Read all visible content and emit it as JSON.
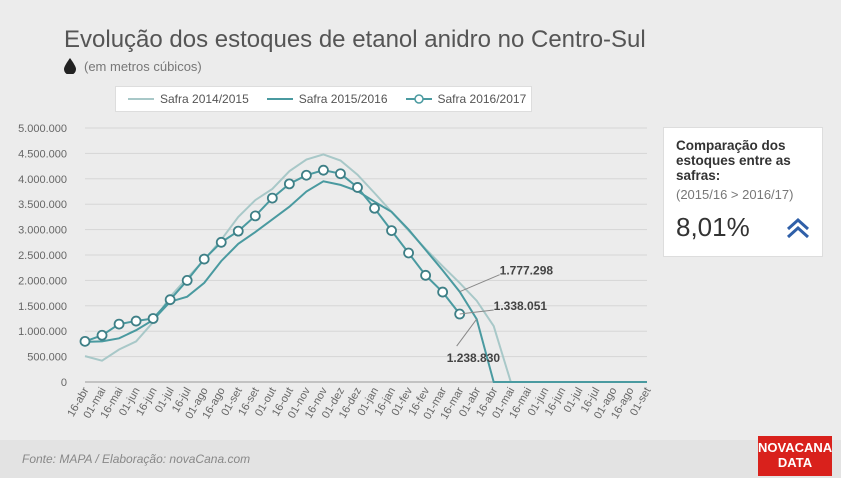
{
  "header": {
    "title": "Evolução dos estoques de etanol anidro no Centro-Sul",
    "subtitle": "(em metros cúbicos)",
    "drop_icon": "water-drop-icon"
  },
  "legend": [
    {
      "name": "Safra 2014/2015",
      "color": "#a8c8c8",
      "marker": false
    },
    {
      "name": "Safra 2015/2016",
      "color": "#4a9aa0",
      "marker": false
    },
    {
      "name": "Safra 2016/2017",
      "color": "#4a9aa0",
      "marker": true
    }
  ],
  "chart_data": {
    "type": "line",
    "title": "Evolução dos estoques de etanol anidro no Centro-Sul",
    "ylabel": "(em metros cúbicos)",
    "ylim": [
      0,
      5000000
    ],
    "yticks": [
      "0",
      "500.000",
      "1.000.000",
      "1.500.000",
      "2.000.000",
      "2.500.000",
      "3.000.000",
      "3.500.000",
      "4.000.000",
      "4.500.000",
      "5.000.000"
    ],
    "grid": true,
    "legend_position": "top",
    "categories": [
      "16-abr",
      "01-mai",
      "16-mai",
      "01-jun",
      "16-jun",
      "01-jul",
      "16-jul",
      "01-ago",
      "16-ago",
      "01-set",
      "16-set",
      "01-out",
      "16-out",
      "01-nov",
      "16-nov",
      "01-dez",
      "16-dez",
      "01-jan",
      "16-jan",
      "01-fev",
      "16-fev",
      "01-mar",
      "16-mar",
      "01-abr",
      "16-abr",
      "01-mai",
      "16-mai",
      "01-jun",
      "16-jun",
      "01-jul",
      "16-jul",
      "01-ago",
      "16-ago",
      "01-set"
    ],
    "series": [
      {
        "name": "Safra 2014/2015",
        "color": "#a8c8c8",
        "values": [
          510000,
          420000,
          640000,
          800000,
          1180000,
          1680000,
          2050000,
          2400000,
          2800000,
          3250000,
          3580000,
          3800000,
          4150000,
          4380000,
          4480000,
          4360000,
          4080000,
          3720000,
          3350000,
          2980000,
          2620000,
          2280000,
          1950000,
          1600000,
          1100000,
          0,
          0,
          0,
          0,
          0,
          0,
          0,
          0,
          0
        ]
      },
      {
        "name": "Safra 2015/2016",
        "color": "#4a9aa0",
        "values": [
          790000,
          800000,
          860000,
          1020000,
          1220000,
          1580000,
          1680000,
          1950000,
          2380000,
          2720000,
          2950000,
          3200000,
          3450000,
          3750000,
          3950000,
          3880000,
          3760000,
          3550000,
          3350000,
          3000000,
          2600000,
          2200000,
          1777298,
          1238830,
          0,
          0,
          0,
          0,
          0,
          0,
          0,
          0,
          0,
          0
        ]
      },
      {
        "name": "Safra 2016/2017",
        "color": "#4a9aa0",
        "marker": true,
        "values": [
          800000,
          920000,
          1140000,
          1200000,
          1250000,
          1620000,
          2000000,
          2420000,
          2750000,
          2970000,
          3270000,
          3620000,
          3900000,
          4070000,
          4170000,
          4100000,
          3830000,
          3420000,
          2980000,
          2540000,
          2100000,
          1770000,
          1338051,
          null,
          null,
          null,
          null,
          null,
          null,
          null,
          null,
          null,
          null,
          null
        ]
      }
    ],
    "annotations": [
      {
        "text": "1.777.298",
        "series": "Safra 2015/2016",
        "index": 22
      },
      {
        "text": "1.338.051",
        "series": "Safra 2016/2017",
        "index": 22
      },
      {
        "text": "1.238.830",
        "series": "Safra 2015/2016",
        "index": 23
      }
    ]
  },
  "side_box": {
    "heading": "Comparação dos estoques entre as safras:",
    "sub": "(2015/16 > 2016/17)",
    "value": "8,01%",
    "icon": "double-chevron-up-icon",
    "icon_color": "#2f5fa8"
  },
  "footer": {
    "source": "Fonte: MAPA  / Elaboração: novaCana.com",
    "brand_line1": "NOVACANA",
    "brand_line2": "DATA",
    "brand_color": "#d9211c"
  }
}
